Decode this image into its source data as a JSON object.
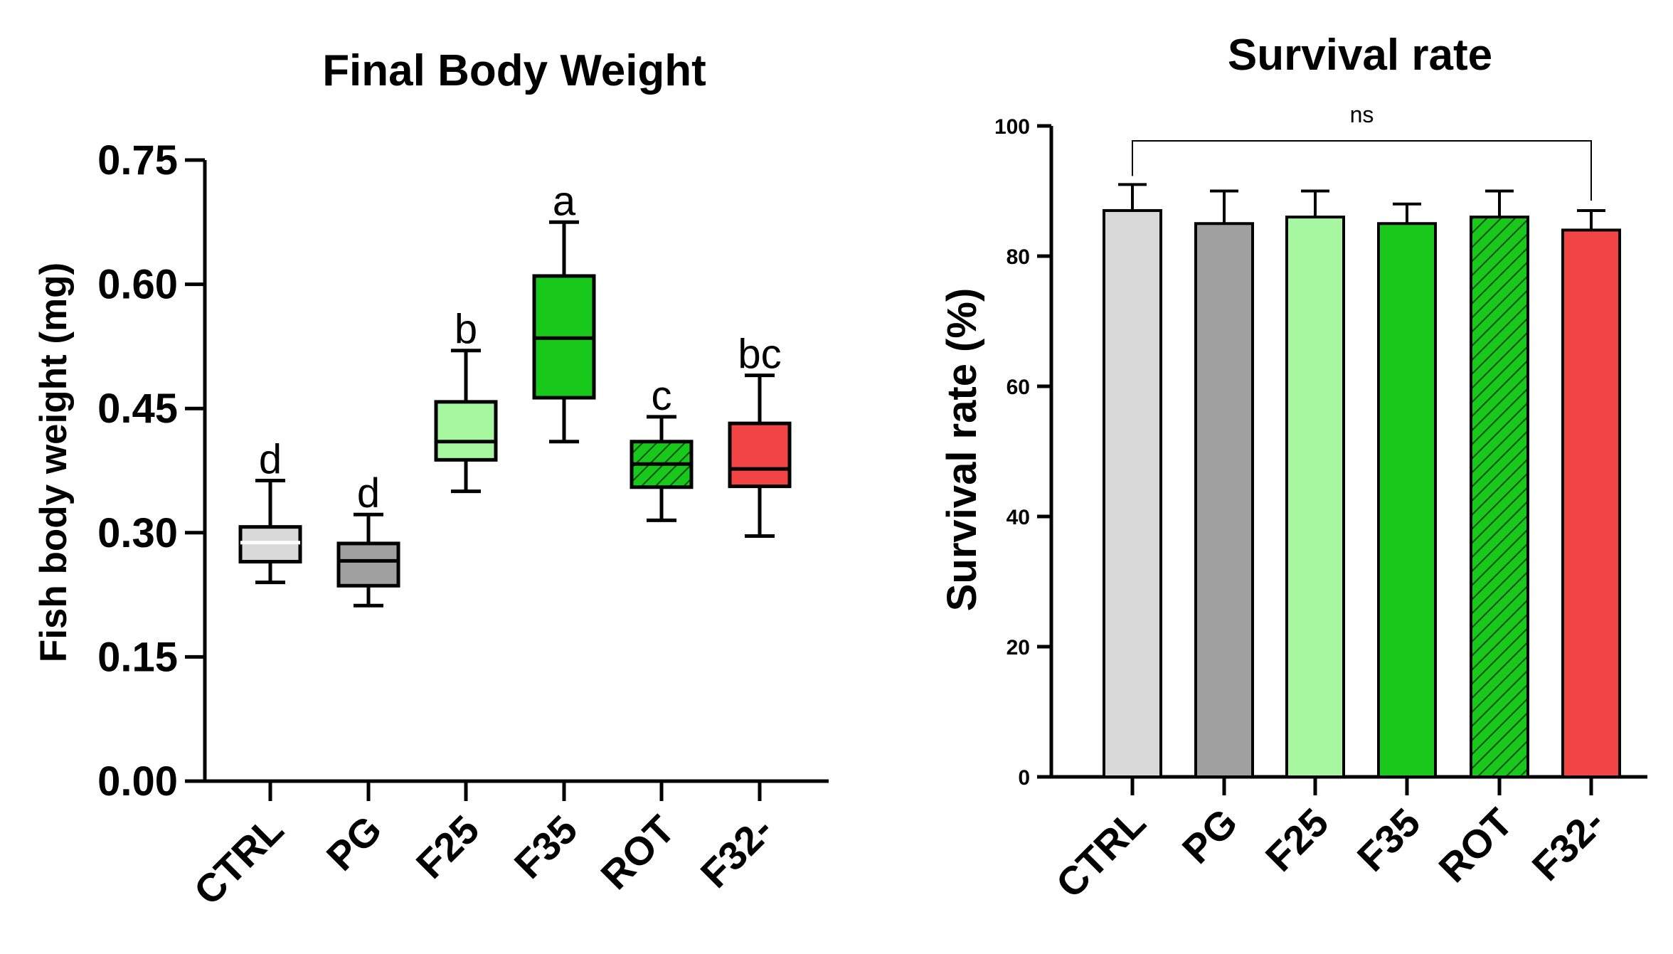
{
  "chart_data": [
    {
      "type": "box",
      "title": "Final Body Weight",
      "ylabel": "Fish body weight (mg)",
      "xlabel": "",
      "ylim": [
        0,
        0.75
      ],
      "yticks": [
        "0.00",
        "0.15",
        "0.30",
        "0.45",
        "0.60",
        "0.75"
      ],
      "ytick_values": [
        0,
        0.15,
        0.3,
        0.45,
        0.6,
        0.75
      ],
      "categories": [
        "CTRL",
        "PG",
        "F25",
        "F35",
        "ROT",
        "F32-"
      ],
      "boxes": [
        {
          "name": "CTRL",
          "min": 0.24,
          "q1": 0.265,
          "median": 0.288,
          "q3": 0.307,
          "max": 0.363,
          "letter": "d",
          "color": "#d9d9d9",
          "hatched": false
        },
        {
          "name": "PG",
          "min": 0.212,
          "q1": 0.236,
          "median": 0.266,
          "q3": 0.287,
          "max": 0.322,
          "letter": "d",
          "color": "#a0a0a0",
          "hatched": false
        },
        {
          "name": "F25",
          "min": 0.35,
          "q1": 0.388,
          "median": 0.41,
          "q3": 0.458,
          "max": 0.52,
          "letter": "b",
          "color": "#a6f79f",
          "hatched": false
        },
        {
          "name": "F35",
          "min": 0.41,
          "q1": 0.463,
          "median": 0.535,
          "q3": 0.61,
          "max": 0.675,
          "letter": "a",
          "color": "#18c81a",
          "hatched": false
        },
        {
          "name": "ROT",
          "min": 0.315,
          "q1": 0.355,
          "median": 0.383,
          "q3": 0.41,
          "max": 0.44,
          "letter": "c",
          "color": "#18c81a",
          "hatched": true
        },
        {
          "name": "F32-",
          "min": 0.296,
          "q1": 0.356,
          "median": 0.377,
          "q3": 0.432,
          "max": 0.49,
          "letter": "bc",
          "color": "#f24444",
          "hatched": false
        }
      ]
    },
    {
      "type": "bar",
      "title": "Survival rate",
      "ylabel": "Survival rate (%)",
      "xlabel": "",
      "ylim": [
        0,
        100
      ],
      "yticks": [
        "0",
        "20",
        "40",
        "60",
        "80",
        "100"
      ],
      "ytick_values": [
        0,
        20,
        40,
        60,
        80,
        100
      ],
      "categories": [
        "CTRL",
        "PG",
        "F25",
        "F35",
        "ROT",
        "F32-"
      ],
      "values": [
        87,
        85,
        86,
        85,
        86,
        84
      ],
      "errors": [
        4,
        5,
        4,
        3,
        4,
        3
      ],
      "colors": [
        "#d9d9d9",
        "#a0a0a0",
        "#a6f79f",
        "#18c81a",
        "#18c81a",
        "#f24444"
      ],
      "hatched": [
        false,
        false,
        false,
        false,
        true,
        false
      ],
      "significance": "ns"
    }
  ]
}
